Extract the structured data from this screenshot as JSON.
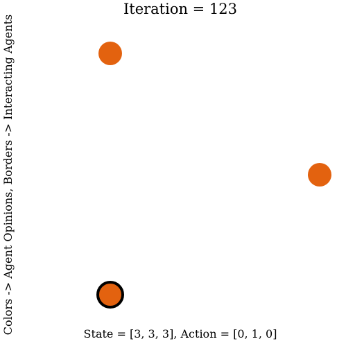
{
  "title": "Iteration = 123",
  "ylabel": "Colors -> Agent Opinions, Borders -> Interacting Agents",
  "footer": "State = [3, 3, 3], Action = [0, 1, 0]",
  "colors": {
    "agent_fill": "#e3620f",
    "interacting_border": "#000000"
  },
  "agents": [
    {
      "opinion": 3,
      "interacting": false
    },
    {
      "opinion": 3,
      "interacting": false
    },
    {
      "opinion": 3,
      "interacting": true
    }
  ]
}
